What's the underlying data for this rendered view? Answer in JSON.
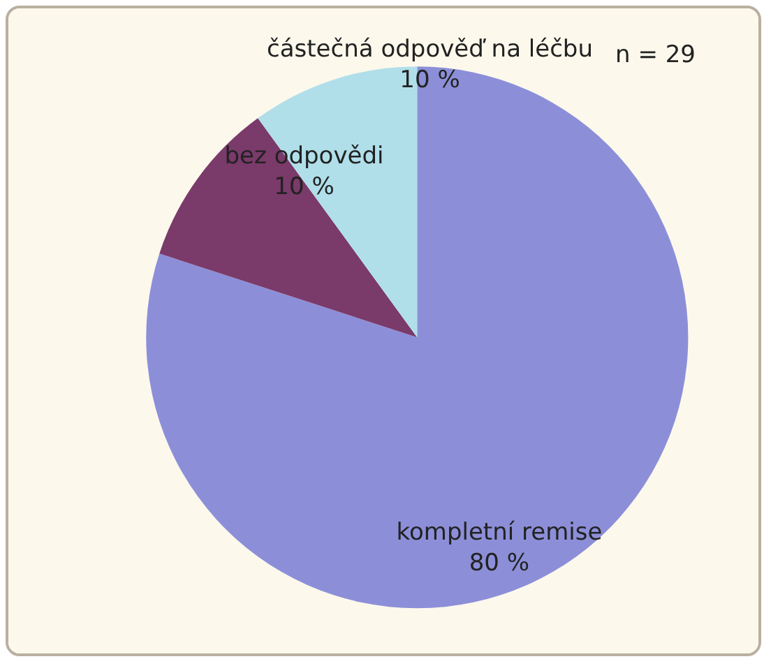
{
  "chart_data": {
    "type": "pie",
    "categories": [
      "kompletní remise",
      "bez odpovědi",
      "částečná odpověď na léčbu"
    ],
    "values": [
      80,
      10,
      10
    ],
    "colors": [
      "#8c8fd8",
      "#7a3a6a",
      "#b0dfea"
    ],
    "value_labels": [
      "80 %",
      "10 %",
      "10 %"
    ],
    "annotations": [
      "n = 29"
    ],
    "legend": false
  }
}
